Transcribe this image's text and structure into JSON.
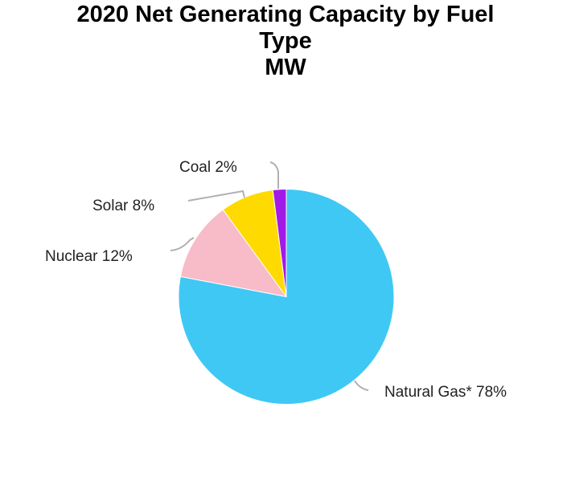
{
  "chart_data": {
    "type": "pie",
    "title": "2020 Net Generating Capacity by Fuel Type MW",
    "title_lines": [
      "2020 Net Generating Capacity by Fuel",
      "Type",
      "MW"
    ],
    "categories": [
      "Natural Gas*",
      "Nuclear",
      "Solar",
      "Coal"
    ],
    "values": [
      78,
      12,
      8,
      2
    ],
    "unit": "%",
    "colors": [
      "#40C8F4",
      "#F8BBC8",
      "#FFDA00",
      "#A21AE6"
    ],
    "labels": [
      "Natural Gas* 78%",
      "Nuclear 12%",
      "Solar 8%",
      "Coal 2%"
    ],
    "start_angle": "12 o'clock, clockwise",
    "legend": "none (outside labels with leader lines)"
  }
}
